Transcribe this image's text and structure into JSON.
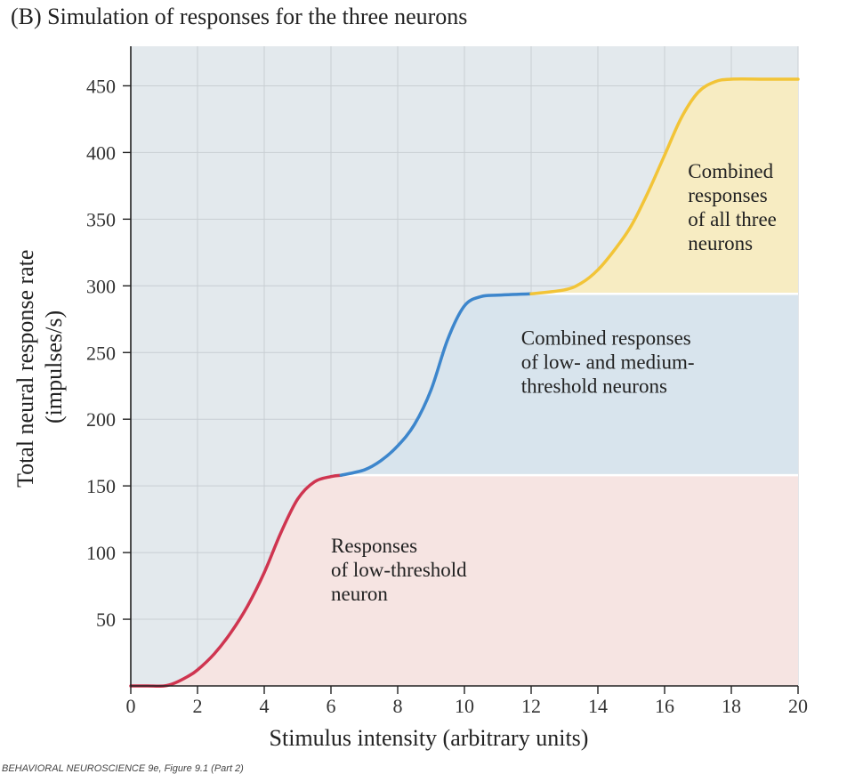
{
  "panel_title": "(B)  Simulation of responses for the three neurons",
  "footer_text": "BEHAVIORAL NEUROSCIENCE 9e, Figure 9.1 (Part 2)",
  "chart_data": {
    "type": "line",
    "title": "(B)  Simulation of responses for the three neurons",
    "xlabel": "Stimulus intensity (arbitrary units)",
    "ylabel_line1": "Total neural response rate",
    "ylabel_line2": "(impulses/s)",
    "xlim": [
      0,
      20
    ],
    "ylim": [
      0,
      470
    ],
    "xticks": [
      0,
      2,
      4,
      6,
      8,
      10,
      12,
      14,
      16,
      18,
      20
    ],
    "yticks": [
      50,
      100,
      150,
      200,
      250,
      300,
      350,
      400,
      450
    ],
    "grid": true,
    "series": [
      {
        "name": "Responses of low-threshold neuron",
        "color": "#cf3550",
        "fill": "#f6e4e2",
        "x": [
          0,
          0.5,
          1.0,
          1.3,
          1.7,
          2.0,
          2.5,
          3.0,
          3.5,
          4.0,
          4.5,
          5.0,
          5.5,
          6.0,
          6.3
        ],
        "y": [
          0,
          0,
          0,
          2,
          7,
          12,
          24,
          40,
          60,
          85,
          115,
          140,
          153,
          157,
          158
        ]
      },
      {
        "name": "Combined responses of low- and medium-threshold neurons",
        "color": "#3d86cc",
        "fill": "#d8e4ed",
        "x": [
          6.3,
          7.0,
          7.5,
          8.0,
          8.5,
          9.0,
          9.5,
          10.0,
          10.5,
          11.0,
          12.0
        ],
        "y": [
          158,
          162,
          169,
          180,
          196,
          222,
          260,
          285,
          292,
          293,
          294
        ]
      },
      {
        "name": "Combined responses of all three neurons",
        "color": "#f2c437",
        "fill": "#f7ecc2",
        "x": [
          12.0,
          13.0,
          13.5,
          14.0,
          14.5,
          15.0,
          15.5,
          16.0,
          16.5,
          17.0,
          17.5,
          18.0,
          19.0,
          20.0
        ],
        "y": [
          294,
          297,
          302,
          312,
          327,
          345,
          370,
          398,
          426,
          445,
          453,
          455,
          455,
          455
        ]
      }
    ],
    "annotations": [
      {
        "lines": [
          "Responses",
          "of low-threshold",
          "neuron"
        ],
        "x": 6.0,
        "y": 100
      },
      {
        "lines": [
          "Combined responses",
          "of low- and medium-",
          "threshold neurons"
        ],
        "x": 11.7,
        "y": 256
      },
      {
        "lines": [
          "Combined",
          "responses",
          "of all three",
          "neurons"
        ],
        "x": 16.7,
        "y": 381
      }
    ],
    "background": "#e3e9ed",
    "grid_color": "#c8ced3"
  }
}
